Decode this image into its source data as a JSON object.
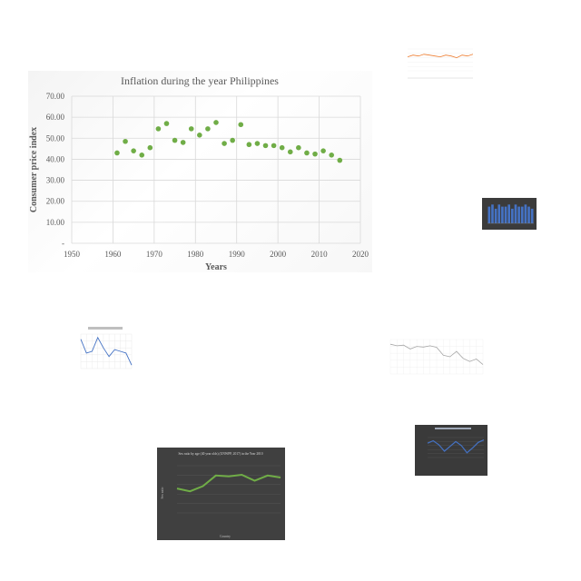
{
  "chart_data": [
    {
      "type": "scatter",
      "title": "Inflation during the year Philippines",
      "xlabel": "Years",
      "ylabel": "Consumer price index",
      "xlim": [
        1950,
        2020
      ],
      "ylim": [
        0,
        70
      ],
      "x_ticks": [
        "1950",
        "1960",
        "1970",
        "1980",
        "1990",
        "2000",
        "2010",
        "2020"
      ],
      "y_ticks": [
        "-",
        "10.00",
        "20.00",
        "30.00",
        "40.00",
        "50.00",
        "60.00",
        "70.00"
      ],
      "grid": true,
      "marker_color": "#70ad47",
      "x": [
        1961,
        1963,
        1965,
        1967,
        1969,
        1971,
        1973,
        1975,
        1977,
        1979,
        1981,
        1983,
        1985,
        1987,
        1989,
        1991,
        1993,
        1995,
        1997,
        1999,
        2001,
        2003,
        2005,
        2007,
        2009,
        2011,
        2013,
        2015
      ],
      "y": [
        43,
        48.5,
        44,
        42,
        45.5,
        54.5,
        57,
        49,
        48,
        54.5,
        51.5,
        54.5,
        57.5,
        47.5,
        49,
        56.5,
        47,
        47.5,
        46.5,
        46.5,
        45.5,
        43.5,
        45.5,
        43,
        42.5,
        44,
        42,
        39.5
      ]
    },
    {
      "type": "line",
      "title": "",
      "line_color": "#ed7d31",
      "values": [
        66,
        68,
        67,
        69,
        68,
        67,
        66,
        68,
        67,
        65,
        68,
        67,
        69
      ]
    },
    {
      "type": "bar",
      "title": "",
      "bar_color": "#4472c4",
      "values": [
        8,
        9,
        7,
        9,
        8,
        8,
        9,
        7,
        9,
        8,
        8,
        9,
        8,
        7
      ]
    },
    {
      "type": "line",
      "title": "",
      "line_color": "#4472c4",
      "values": [
        8.5,
        4.5,
        5,
        9,
        6,
        3.5,
        5.5,
        5,
        4.5,
        1
      ]
    },
    {
      "type": "line",
      "title": "",
      "line_color": "#a6a6a6",
      "values": [
        95,
        90,
        92,
        80,
        88,
        86,
        90,
        85,
        60,
        55,
        72,
        50,
        40,
        48,
        30
      ]
    },
    {
      "type": "line",
      "title": "Sex ratio by age (40 year olds) (UNWPP, 2017) in the Year 2010",
      "xlabel": "Country",
      "ylabel": "Sex ratio",
      "line_color": "#70ad47",
      "values": [
        62,
        55,
        68,
        95,
        93,
        97,
        82,
        95,
        90
      ]
    },
    {
      "type": "line",
      "title": "",
      "line_color": "#4472c4",
      "values": [
        2.8,
        3.1,
        2.6,
        1.8,
        2.4,
        3.0,
        2.5,
        1.6,
        2.2,
        2.9,
        3.2
      ]
    }
  ]
}
